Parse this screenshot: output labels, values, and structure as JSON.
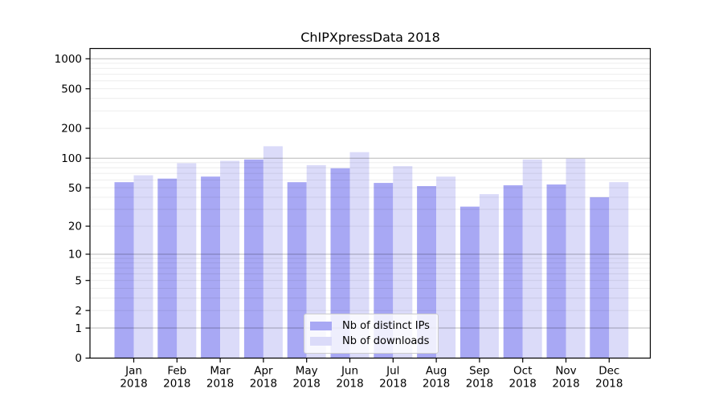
{
  "chart_data": {
    "type": "bar",
    "title": "ChIPXpressData 2018",
    "categories": [
      "Jan",
      "Feb",
      "Mar",
      "Apr",
      "May",
      "Jun",
      "Jul",
      "Aug",
      "Sep",
      "Oct",
      "Nov",
      "Dec"
    ],
    "x_second_line": "2018",
    "series": [
      {
        "name": "Nb of distinct IPs",
        "color": "#a8a8f4",
        "values": [
          57,
          62,
          65,
          97,
          57,
          79,
          56,
          52,
          32,
          53,
          54,
          40
        ]
      },
      {
        "name": "Nb of downloads",
        "color": "#dbdbf9",
        "values": [
          67,
          89,
          94,
          132,
          85,
          115,
          83,
          65,
          43,
          97,
          99,
          57
        ]
      }
    ],
    "yscale": "log1p",
    "yticks": [
      0,
      1,
      2,
      5,
      10,
      20,
      50,
      100,
      200,
      500,
      1000
    ],
    "ylim": [
      0,
      1267
    ],
    "grid": true,
    "legend_position": "lower-center",
    "major_grid_values": [
      1,
      10,
      100,
      1000
    ],
    "minor_grid_values": [
      3,
      4,
      6,
      7,
      8,
      9,
      30,
      40,
      60,
      70,
      80,
      90,
      300,
      400,
      600,
      700,
      800,
      900
    ]
  }
}
